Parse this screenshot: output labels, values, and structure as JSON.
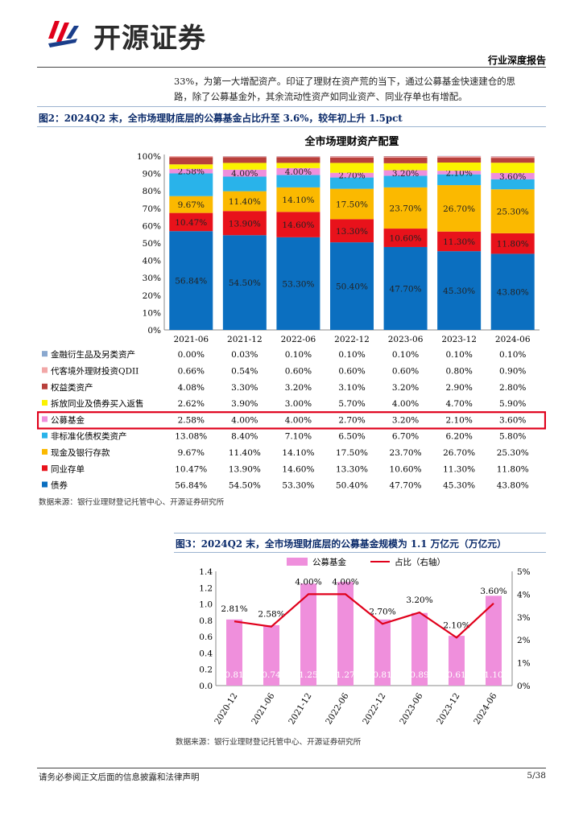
{
  "header": {
    "brand": "开源证券",
    "report_type": "行业深度报告"
  },
  "intro": {
    "line1": "33%，为第一大增配资产。印证了理财在资产荒的当下，通过公募基金快速建仓的思",
    "line2": "路，除了公募基金外，其余流动性资产如同业资产、同业存单也有增配。"
  },
  "figure2": {
    "title": "图2：2024Q2 末，全市场理财底层的公募基金占比升至 3.6%，较年初上升 1.5pct",
    "source": "数据来源：银行业理财登记托管中心、开源证券研究所"
  },
  "figure3": {
    "title": "图3：2024Q2 末，全市场理财底层的公募基金规模为 1.1 万亿元（万亿元）",
    "source": "数据来源：银行业理财登记托管中心、开源证券研究所"
  },
  "footer": {
    "disclaimer": "请务必参阅正文后面的信息披露和法律声明",
    "page": "5/38"
  },
  "chart_data": [
    {
      "type": "bar",
      "stacked": true,
      "title": "全市场理财资产配置",
      "categories": [
        "2021-06",
        "2021-12",
        "2022-06",
        "2022-12",
        "2023-06",
        "2023-12",
        "2024-06"
      ],
      "y_ticks": [
        "0%",
        "10%",
        "20%",
        "30%",
        "40%",
        "50%",
        "60%",
        "70%",
        "80%",
        "90%",
        "100%"
      ],
      "ylim": [
        0,
        100
      ],
      "series": [
        {
          "name": "债券",
          "color": "#0b6fc0",
          "labels": [
            "56.84%",
            "54.50%",
            "53.30%",
            "50.40%",
            "47.70%",
            "45.30%",
            "43.80%"
          ],
          "values": [
            56.84,
            54.5,
            53.3,
            50.4,
            47.7,
            45.3,
            43.8
          ],
          "show_label": true
        },
        {
          "name": "同业存单",
          "color": "#e8121b",
          "labels": [
            "10.47%",
            "13.90%",
            "14.60%",
            "13.30%",
            "10.60%",
            "11.30%",
            "11.80%"
          ],
          "values": [
            10.47,
            13.9,
            14.6,
            13.3,
            10.6,
            11.3,
            11.8
          ],
          "show_label": true
        },
        {
          "name": "现金及银行存款",
          "color": "#fbb900",
          "labels": [
            "9.67%",
            "11.40%",
            "14.10%",
            "17.50%",
            "23.70%",
            "26.70%",
            "25.30%"
          ],
          "values": [
            9.67,
            11.4,
            14.1,
            17.5,
            23.7,
            26.7,
            25.3
          ],
          "show_label": true
        },
        {
          "name": "非标准化债权类资产",
          "color": "#29b3ea",
          "labels": [
            "13.08%",
            "8.40%",
            "7.10%",
            "6.50%",
            "6.70%",
            "6.20%",
            "5.80%"
          ],
          "values": [
            13.08,
            8.4,
            7.1,
            6.5,
            6.7,
            6.2,
            5.8
          ],
          "show_label": false
        },
        {
          "name": "公募基金",
          "color": "#ef8fdc",
          "labels": [
            "2.58%",
            "4.00%",
            "4.00%",
            "2.70%",
            "3.20%",
            "2.10%",
            "3.60%"
          ],
          "values": [
            2.58,
            4.0,
            4.0,
            2.7,
            3.2,
            2.1,
            3.6
          ],
          "show_label": true
        },
        {
          "name": "拆放同业及债券买入返售",
          "color": "#fbf200",
          "labels": [
            "2.62%",
            "3.90%",
            "3.00%",
            "5.70%",
            "4.00%",
            "4.70%",
            "5.90%"
          ],
          "values": [
            2.62,
            3.9,
            3.0,
            5.7,
            4.0,
            4.7,
            5.9
          ],
          "show_label": false
        },
        {
          "name": "权益类资产",
          "color": "#b8403b",
          "labels": [
            "4.08%",
            "3.30%",
            "3.20%",
            "3.10%",
            "3.20%",
            "2.90%",
            "2.80%"
          ],
          "values": [
            4.08,
            3.3,
            3.2,
            3.1,
            3.2,
            2.9,
            2.8
          ],
          "show_label": false
        },
        {
          "name": "代客境外理财投资QDII",
          "color": "#f2a7a7",
          "labels": [
            "0.66%",
            "0.54%",
            "0.60%",
            "0.60%",
            "0.60%",
            "0.80%",
            "0.90%"
          ],
          "values": [
            0.66,
            0.54,
            0.6,
            0.6,
            0.6,
            0.8,
            0.9
          ],
          "show_label": false
        },
        {
          "name": "金融衍生品及另类资产",
          "color": "#8aa8cf",
          "labels": [
            "0.00%",
            "0.03%",
            "0.10%",
            "0.10%",
            "0.10%",
            "0.10%",
            "0.10%"
          ],
          "values": [
            0.0,
            0.03,
            0.1,
            0.1,
            0.1,
            0.1,
            0.1
          ],
          "show_label": false
        }
      ],
      "table_order": [
        "金融衍生品及另类资产",
        "代客境外理财投资QDII",
        "权益类资产",
        "拆放同业及债券买入返售",
        "公募基金",
        "非标准化债权类资产",
        "现金及银行存款",
        "同业存单",
        "债券"
      ],
      "highlight_row": "公募基金",
      "highlight_color": "#e0001b"
    },
    {
      "type": "bar+line",
      "categories": [
        "2020-12",
        "2021-06",
        "2021-12",
        "2022-06",
        "2022-12",
        "2023-06",
        "2023-12",
        "2024-06"
      ],
      "bar_series": {
        "name": "公募基金",
        "color": "#ef8fdc",
        "values": [
          0.81,
          0.74,
          1.25,
          1.27,
          0.81,
          0.89,
          0.61,
          1.1
        ],
        "labels": [
          "0.81",
          "0.74",
          "1.25",
          "1.27",
          "0.81",
          "0.89",
          "0.61",
          "1.10"
        ]
      },
      "line_series": {
        "name": "占比（右轴）",
        "color": "#e0001b",
        "values": [
          2.81,
          2.58,
          4.0,
          4.0,
          2.7,
          3.2,
          2.1,
          3.6
        ],
        "labels": [
          "2.81%",
          "2.58%",
          "4.00%",
          "4.00%",
          "2.70%",
          "3.20%",
          "2.10%",
          "3.60%"
        ]
      },
      "left_ticks": [
        "0.0",
        "0.2",
        "0.4",
        "0.6",
        "0.8",
        "1.0",
        "1.2",
        "1.4"
      ],
      "left_lim": [
        0,
        1.4
      ],
      "right_ticks": [
        "0%",
        "1%",
        "2%",
        "3%",
        "4%",
        "5%"
      ],
      "right_lim": [
        0,
        5
      ]
    }
  ]
}
